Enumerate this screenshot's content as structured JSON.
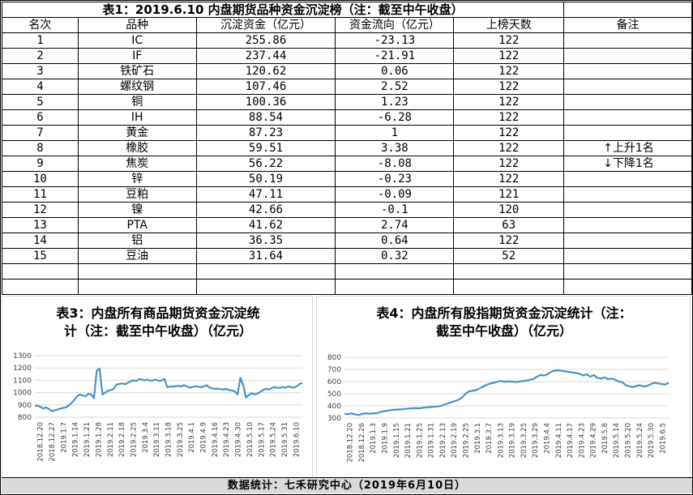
{
  "table": {
    "title": "表1：2019.6.10 内盘期货品种资金沉淀榜（注：截至中午收盘）",
    "headers": [
      "名次",
      "品种",
      "沉淀资金（亿元）",
      "资金流向（亿元）",
      "上榜天数",
      "备注"
    ],
    "rows": [
      [
        "1",
        "IC",
        "255.86",
        "-23.13",
        "122"
      ],
      [
        "2",
        "IF",
        "237.44",
        "-21.91",
        "122"
      ],
      [
        "3",
        "铁矿石",
        "120.62",
        "0.06",
        "122"
      ],
      [
        "4",
        "螺纹钢",
        "107.46",
        "2.52",
        "122"
      ],
      [
        "5",
        "铜",
        "100.36",
        "1.23",
        "122"
      ],
      [
        "6",
        "IH",
        "88.54",
        "-6.28",
        "122"
      ],
      [
        "7",
        "黄金",
        "87.23",
        "1",
        "122"
      ],
      [
        "8",
        "橡胶",
        "59.51",
        "3.38",
        "122"
      ],
      [
        "9",
        "焦炭",
        "56.22",
        "-8.08",
        "122"
      ],
      [
        "10",
        "锌",
        "50.19",
        "-0.23",
        "122"
      ],
      [
        "11",
        "豆粕",
        "47.11",
        "-0.09",
        "121"
      ],
      [
        "12",
        "镍",
        "42.66",
        "-0.1",
        "120"
      ],
      [
        "13",
        "PTA",
        "41.62",
        "2.74",
        "63"
      ],
      [
        "14",
        "铝",
        "36.35",
        "0.64",
        "122"
      ],
      [
        "15",
        "豆油",
        "31.64",
        "0.32",
        "52"
      ]
    ],
    "notes": {
      "up": "上升1名",
      "down": "下降1名",
      "up_icon": "arrow-up-icon",
      "down_icon": "arrow-down-icon"
    }
  },
  "chart_data": [
    {
      "type": "line",
      "title": "表3：内盘所有商品期货资金沉淀统计（注：截至中午收盘）（亿元）",
      "title_lines": [
        "表3：内盘所有商品期货资金沉淀统",
        "计（注：截至中午收盘）（亿元）"
      ],
      "ylim": [
        800,
        1300
      ],
      "yticks": [
        800,
        900,
        1000,
        1100,
        1200,
        1300
      ],
      "xticks": [
        "2018.12.20",
        "2018.12.27",
        "2019.1.7",
        "2019.1.14",
        "2019.1.21",
        "2019.1.28",
        "2019.2.11",
        "2019.2.18",
        "2019.2.25",
        "2019.3.4",
        "2019.3.11",
        "2019.3.18",
        "2019.3.25",
        "2019.4.1",
        "2019.4.9",
        "2019.4.16",
        "2019.4.23",
        "2019.4.30",
        "2019.5.10",
        "2019.5.17",
        "2019.5.24",
        "2019.5.31",
        "2019.6.10"
      ],
      "color": "#4a90c8",
      "values": [
        895,
        893,
        885,
        870,
        880,
        865,
        850,
        855,
        862,
        870,
        875,
        880,
        895,
        915,
        940,
        970,
        985,
        975,
        970,
        990,
        985,
        955,
        1180,
        1195,
        985,
        1000,
        1015,
        1020,
        1030,
        1065,
        1070,
        1075,
        1068,
        1080,
        1090,
        1100,
        1095,
        1110,
        1105,
        1100,
        1105,
        1095,
        1100,
        1105,
        1095,
        1098,
        1112,
        1045,
        1050,
        1048,
        1052,
        1055,
        1050,
        1060,
        1050,
        1040,
        1045,
        1052,
        1048,
        1045,
        1050,
        1060,
        1040,
        1035,
        1030,
        1032,
        1028,
        1025,
        1030,
        1020,
        1018,
        1010,
        985,
        1120,
        1060,
        960,
        980,
        995,
        985,
        990,
        1005,
        1020,
        1030,
        1025,
        1035,
        1045,
        1040,
        1038,
        1045,
        1040,
        1050,
        1045,
        1040,
        1052,
        1070,
        1078
      ]
    },
    {
      "type": "line",
      "title": "表4：内盘所有股指期货资金沉淀统计（注：截至中午收盘）（亿元）",
      "title_lines": [
        "表4：内盘所有股指期货资金沉淀统计（注：",
        "截至中午收盘）（亿元）"
      ],
      "ylim": [
        300,
        800
      ],
      "yticks": [
        300,
        400,
        500,
        600,
        700,
        800
      ],
      "xticks": [
        "2018.12.20",
        "2018.12.26",
        "2019.1.3",
        "2019.1.9",
        "2019.1.15",
        "2019.1.21",
        "2019.1.25",
        "2019.1.31",
        "2019.2.13",
        "2019.2.19",
        "2019.2.25",
        "2019.3.1",
        "2019.3.7",
        "2019.3.13",
        "2019.3.19",
        "2019.3.25",
        "2019.3.29",
        "2019.4.4",
        "2019.4.11",
        "2019.4.17",
        "2019.4.23",
        "2019.4.29",
        "2019.5.8",
        "2019.5.14",
        "2019.5.20",
        "2019.5.24",
        "2019.5.30",
        "2019.6.5"
      ],
      "color": "#4a90c8",
      "values": [
        335,
        332,
        338,
        330,
        325,
        335,
        340,
        335,
        340,
        338,
        350,
        355,
        360,
        365,
        368,
        370,
        372,
        375,
        378,
        380,
        382,
        380,
        385,
        388,
        390,
        392,
        395,
        400,
        410,
        420,
        430,
        440,
        450,
        470,
        500,
        520,
        525,
        530,
        545,
        560,
        575,
        585,
        590,
        600,
        605,
        598,
        602,
        600,
        596,
        600,
        605,
        608,
        615,
        620,
        640,
        655,
        650,
        660,
        680,
        690,
        692,
        688,
        685,
        680,
        675,
        670,
        665,
        650,
        660,
        640,
        655,
        630,
        625,
        635,
        620,
        625,
        615,
        600,
        595,
        570,
        560,
        555,
        565,
        570,
        560,
        565,
        580,
        590,
        585,
        580,
        575,
        590
      ]
    }
  ],
  "footer": "数据统计：七禾研究中心（2019年6月10日）"
}
